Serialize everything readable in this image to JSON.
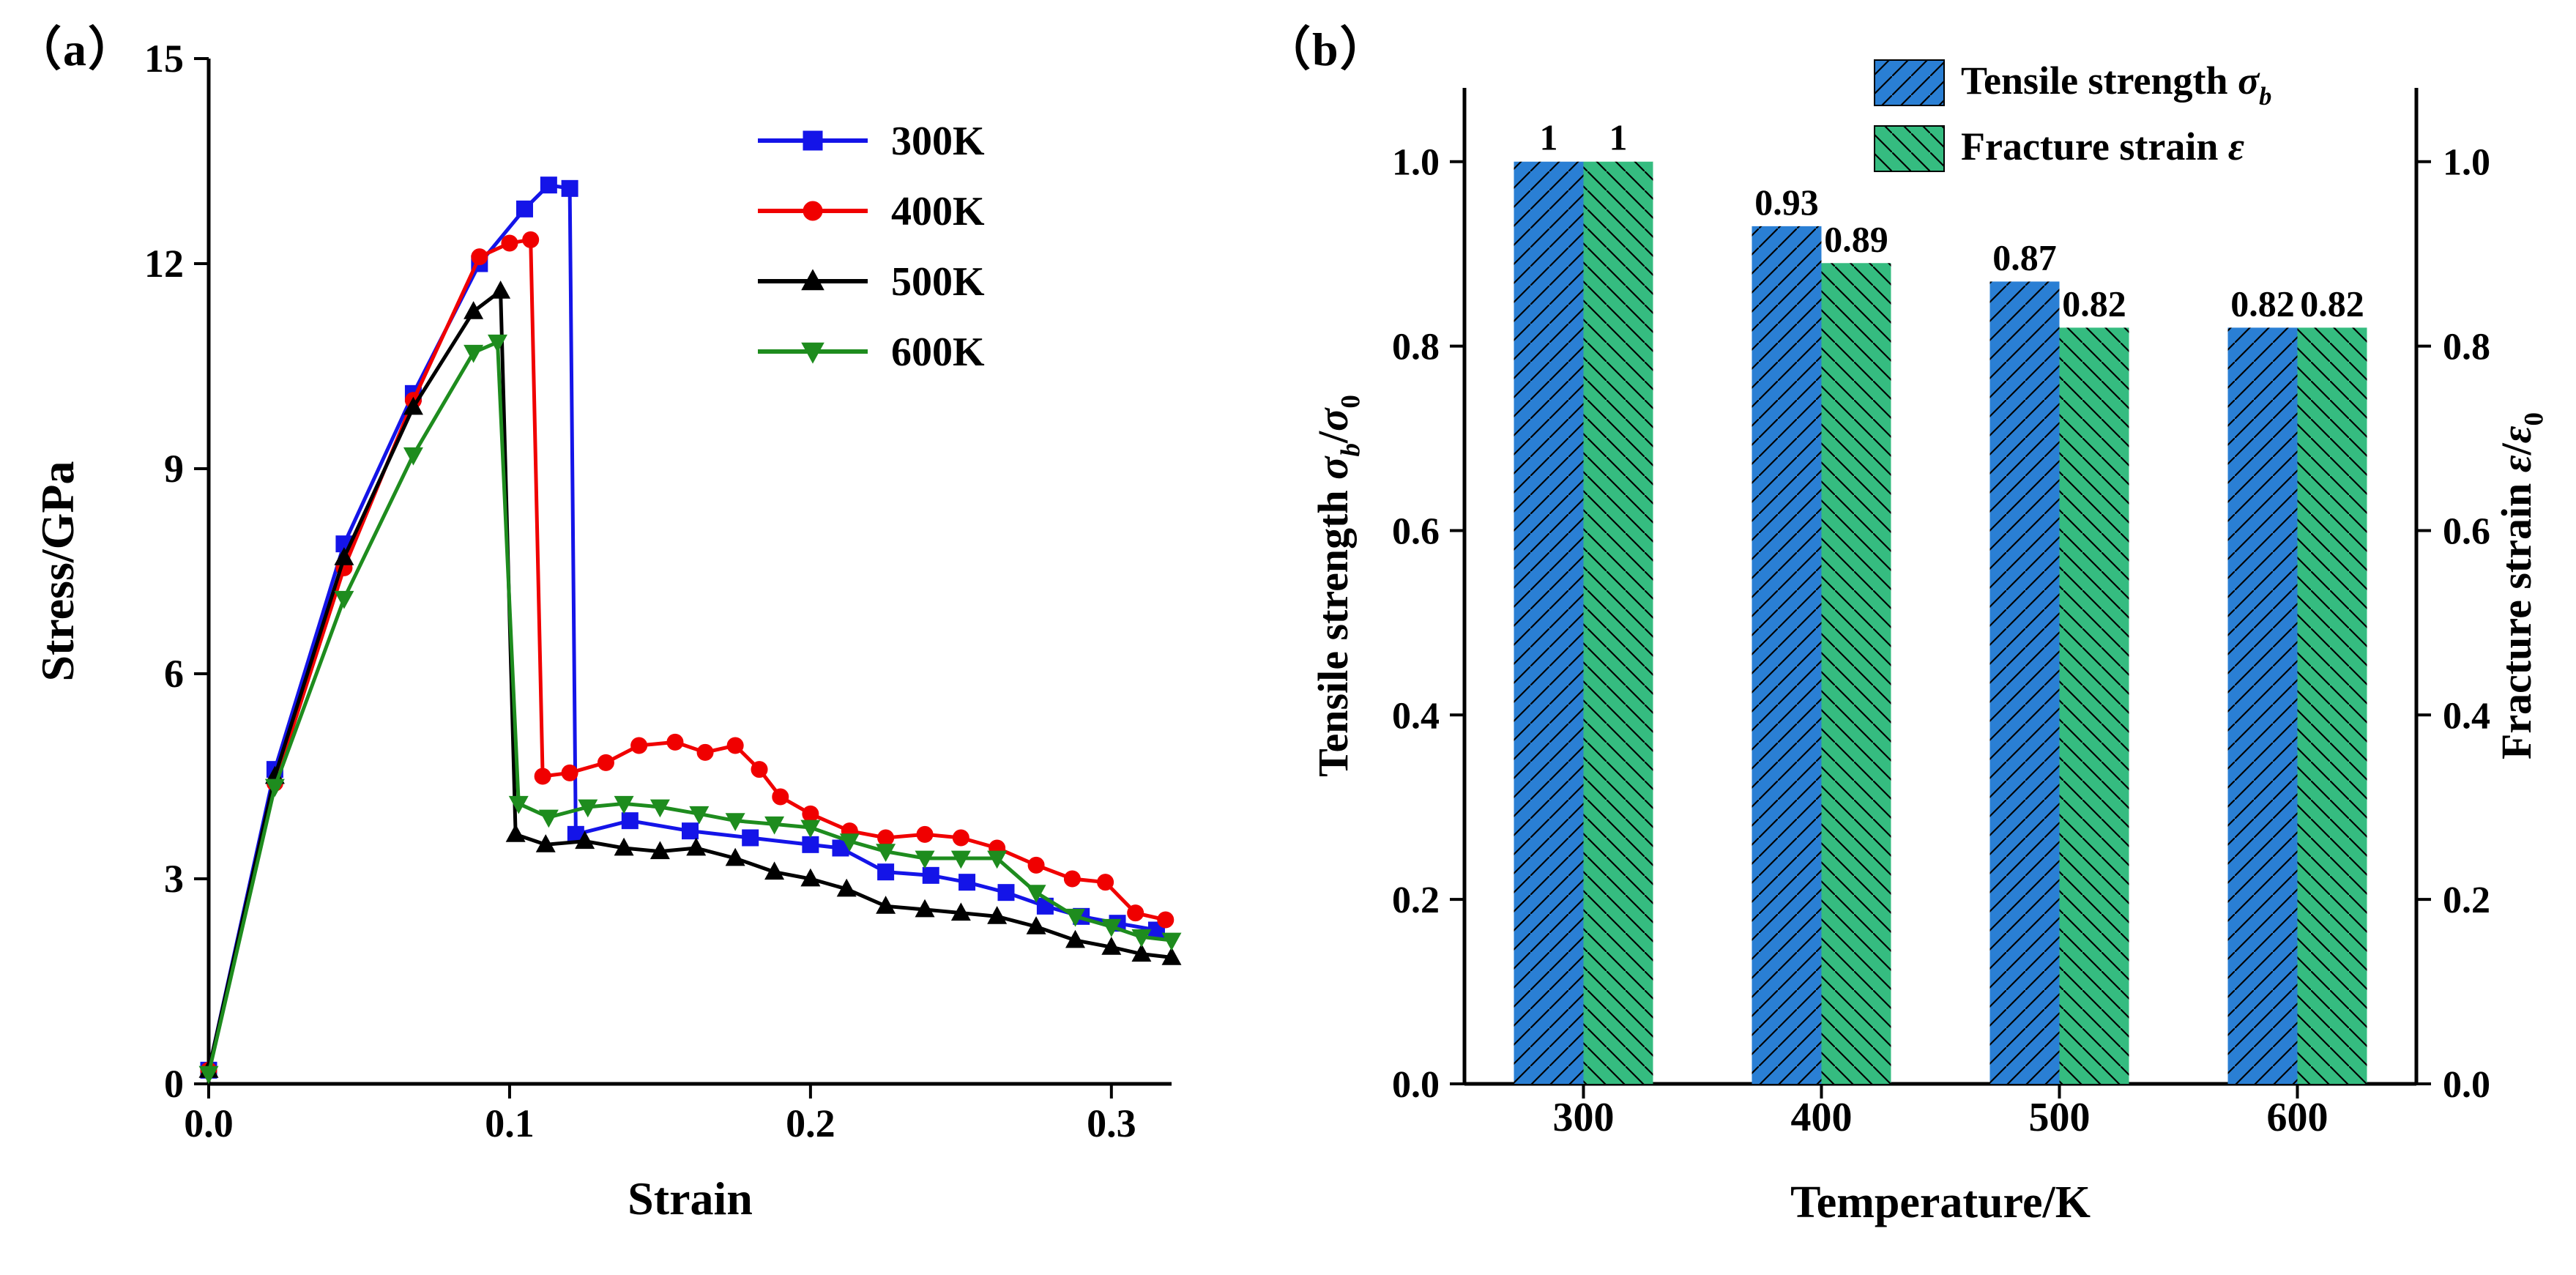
{
  "figure": {
    "panel_a_label": "（a）",
    "panel_b_label": "（b）"
  },
  "chart_data": [
    {
      "type": "line",
      "panel": "a",
      "xlabel": "Strain",
      "ylabel": "Stress/GPa",
      "xlim": [
        0,
        0.32
      ],
      "ylim": [
        0,
        15
      ],
      "xticks": [
        "0.0",
        "0.1",
        "0.2",
        "0.3"
      ],
      "xtick_values": [
        0,
        0.1,
        0.2,
        0.3
      ],
      "yticks": [
        "0",
        "3",
        "6",
        "9",
        "12",
        "15"
      ],
      "ytick_values": [
        0,
        3,
        6,
        9,
        12,
        15
      ],
      "grid": false,
      "legend_position": "upper-right-inside",
      "series": [
        {
          "name": "300K",
          "color": "#1414e8",
          "marker": "square",
          "points": [
            [
              0,
              0.2
            ],
            [
              0.022,
              4.6
            ],
            [
              0.045,
              7.9
            ],
            [
              0.068,
              10.1
            ],
            [
              0.09,
              12.0
            ],
            [
              0.105,
              12.8
            ],
            [
              0.113,
              13.15
            ],
            [
              0.12,
              13.1
            ],
            [
              0.122,
              3.65
            ],
            [
              0.14,
              3.85
            ],
            [
              0.16,
              3.7
            ],
            [
              0.18,
              3.6
            ],
            [
              0.2,
              3.5
            ],
            [
              0.21,
              3.45
            ],
            [
              0.225,
              3.1
            ],
            [
              0.24,
              3.05
            ],
            [
              0.252,
              2.95
            ],
            [
              0.265,
              2.8
            ],
            [
              0.278,
              2.6
            ],
            [
              0.29,
              2.45
            ],
            [
              0.302,
              2.35
            ],
            [
              0.315,
              2.25
            ]
          ]
        },
        {
          "name": "400K",
          "color": "#f00000",
          "marker": "circle",
          "points": [
            [
              0,
              0.2
            ],
            [
              0.022,
              4.4
            ],
            [
              0.045,
              7.55
            ],
            [
              0.068,
              10.0
            ],
            [
              0.09,
              12.1
            ],
            [
              0.1,
              12.3
            ],
            [
              0.107,
              12.35
            ],
            [
              0.111,
              4.5
            ],
            [
              0.12,
              4.55
            ],
            [
              0.132,
              4.7
            ],
            [
              0.143,
              4.95
            ],
            [
              0.155,
              5.0
            ],
            [
              0.165,
              4.85
            ],
            [
              0.175,
              4.95
            ],
            [
              0.183,
              4.6
            ],
            [
              0.19,
              4.2
            ],
            [
              0.2,
              3.95
            ],
            [
              0.213,
              3.7
            ],
            [
              0.225,
              3.6
            ],
            [
              0.238,
              3.65
            ],
            [
              0.25,
              3.6
            ],
            [
              0.262,
              3.45
            ],
            [
              0.275,
              3.2
            ],
            [
              0.287,
              3.0
            ],
            [
              0.298,
              2.95
            ],
            [
              0.308,
              2.5
            ],
            [
              0.318,
              2.4
            ]
          ]
        },
        {
          "name": "500K",
          "color": "#000000",
          "marker": "triangle-up",
          "points": [
            [
              0,
              0.2
            ],
            [
              0.022,
              4.5
            ],
            [
              0.045,
              7.7
            ],
            [
              0.068,
              9.9
            ],
            [
              0.088,
              11.3
            ],
            [
              0.097,
              11.6
            ],
            [
              0.102,
              3.65
            ],
            [
              0.112,
              3.5
            ],
            [
              0.125,
              3.55
            ],
            [
              0.138,
              3.45
            ],
            [
              0.15,
              3.4
            ],
            [
              0.162,
              3.45
            ],
            [
              0.175,
              3.3
            ],
            [
              0.188,
              3.1
            ],
            [
              0.2,
              3.0
            ],
            [
              0.212,
              2.85
            ],
            [
              0.225,
              2.6
            ],
            [
              0.238,
              2.55
            ],
            [
              0.25,
              2.5
            ],
            [
              0.262,
              2.45
            ],
            [
              0.275,
              2.3
            ],
            [
              0.288,
              2.1
            ],
            [
              0.3,
              2.0
            ],
            [
              0.31,
              1.9
            ],
            [
              0.32,
              1.85
            ]
          ]
        },
        {
          "name": "600K",
          "color": "#1e8c1e",
          "marker": "triangle-down",
          "points": [
            [
              0,
              0.15
            ],
            [
              0.022,
              4.35
            ],
            [
              0.045,
              7.1
            ],
            [
              0.068,
              9.2
            ],
            [
              0.088,
              10.7
            ],
            [
              0.096,
              10.85
            ],
            [
              0.103,
              4.1
            ],
            [
              0.113,
              3.9
            ],
            [
              0.126,
              4.05
            ],
            [
              0.138,
              4.1
            ],
            [
              0.15,
              4.05
            ],
            [
              0.163,
              3.95
            ],
            [
              0.175,
              3.85
            ],
            [
              0.188,
              3.8
            ],
            [
              0.2,
              3.75
            ],
            [
              0.213,
              3.55
            ],
            [
              0.225,
              3.4
            ],
            [
              0.238,
              3.3
            ],
            [
              0.25,
              3.3
            ],
            [
              0.262,
              3.3
            ],
            [
              0.275,
              2.8
            ],
            [
              0.288,
              2.45
            ],
            [
              0.3,
              2.3
            ],
            [
              0.31,
              2.15
            ],
            [
              0.32,
              2.1
            ]
          ]
        }
      ]
    },
    {
      "type": "bar",
      "panel": "b",
      "categories": [
        "300",
        "400",
        "500",
        "600"
      ],
      "xlabel": "Temperature/K",
      "ylabel_left": "Tensile strength σb/σ0",
      "ylabel_left_parts": [
        {
          "t": "Tensile strength "
        },
        {
          "t": "σ",
          "i": true
        },
        {
          "t": "b",
          "i": true,
          "sub": true
        },
        {
          "t": "/"
        },
        {
          "t": "σ",
          "i": true
        },
        {
          "t": "0",
          "sub": true
        }
      ],
      "ylabel_right": "Fracture strain ε/ε0",
      "ylabel_right_parts": [
        {
          "t": "Fracture strain "
        },
        {
          "t": "ε",
          "i": true
        },
        {
          "t": "/"
        },
        {
          "t": "ε",
          "i": true
        },
        {
          "t": "0",
          "sub": true
        }
      ],
      "ylim": [
        0,
        1.08
      ],
      "yticks": [
        "0.0",
        "0.2",
        "0.4",
        "0.6",
        "0.8",
        "1.0"
      ],
      "ytick_values": [
        0,
        0.2,
        0.4,
        0.6,
        0.8,
        1.0
      ],
      "grid": false,
      "legend_position": "top-right",
      "series": [
        {
          "name": "Tensile strength σb",
          "name_parts": [
            {
              "t": "Tensile strength "
            },
            {
              "t": "σ",
              "i": true
            },
            {
              "t": "b",
              "i": true,
              "sub": true
            }
          ],
          "color": "#2a7fd4",
          "hatch": "/",
          "values": [
            1,
            0.93,
            0.87,
            0.82
          ],
          "labels": [
            "1",
            "0.93",
            "0.87",
            "0.82"
          ]
        },
        {
          "name": "Fracture strain ε",
          "name_parts": [
            {
              "t": "Fracture strain "
            },
            {
              "t": "ε",
              "i": true
            }
          ],
          "color": "#35bc80",
          "hatch": "\\",
          "values": [
            1,
            0.89,
            0.82,
            0.82
          ],
          "labels": [
            "1",
            "0.89",
            "0.82",
            "0.82"
          ]
        }
      ]
    }
  ]
}
